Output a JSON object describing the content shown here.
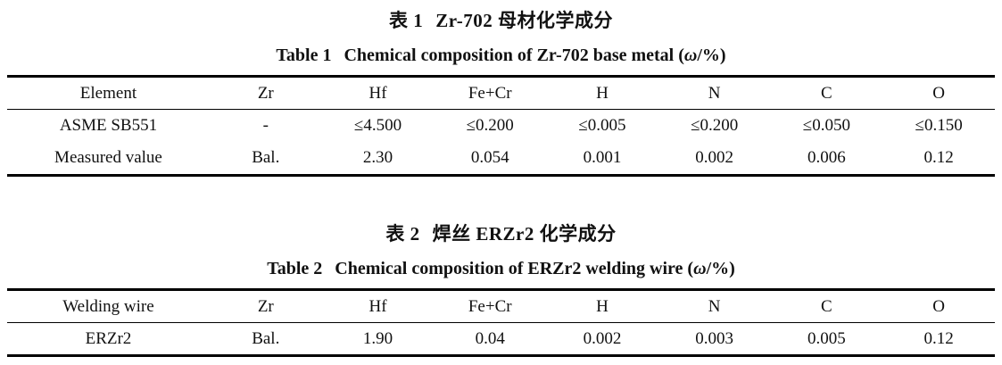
{
  "page": {
    "background": "#ffffff",
    "text_color": "#111111",
    "rule_color": "#000000"
  },
  "tables": [
    {
      "title_zh_label": "表 1",
      "title_zh_text": "Zr-702 母材化学成分",
      "title_en_label": "Table 1",
      "title_en_text": "Chemical composition of Zr-702 base metal (",
      "title_en_omega": "ω",
      "title_en_suffix": "/%)",
      "columns": [
        "Element",
        "Zr",
        "Hf",
        "Fe+Cr",
        "H",
        "N",
        "C",
        "O"
      ],
      "rows": [
        [
          "ASME SB551",
          "-",
          "≤4.500",
          "≤0.200",
          "≤0.005",
          "≤0.200",
          "≤0.050",
          "≤0.150"
        ],
        [
          "Measured value",
          "Bal.",
          "2.30",
          "0.054",
          "0.001",
          "0.002",
          "0.006",
          "0.12"
        ]
      ]
    },
    {
      "title_zh_label": "表 2",
      "title_zh_text": "焊丝 ERZr2 化学成分",
      "title_en_label": "Table 2",
      "title_en_text": "Chemical composition of ERZr2 welding wire (",
      "title_en_omega": "ω",
      "title_en_suffix": "/%)",
      "columns": [
        "Welding wire",
        "Zr",
        "Hf",
        "Fe+Cr",
        "H",
        "N",
        "C",
        "O"
      ],
      "rows": [
        [
          "ERZr2",
          "Bal.",
          "1.90",
          "0.04",
          "0.002",
          "0.003",
          "0.005",
          "0.12"
        ]
      ]
    }
  ]
}
